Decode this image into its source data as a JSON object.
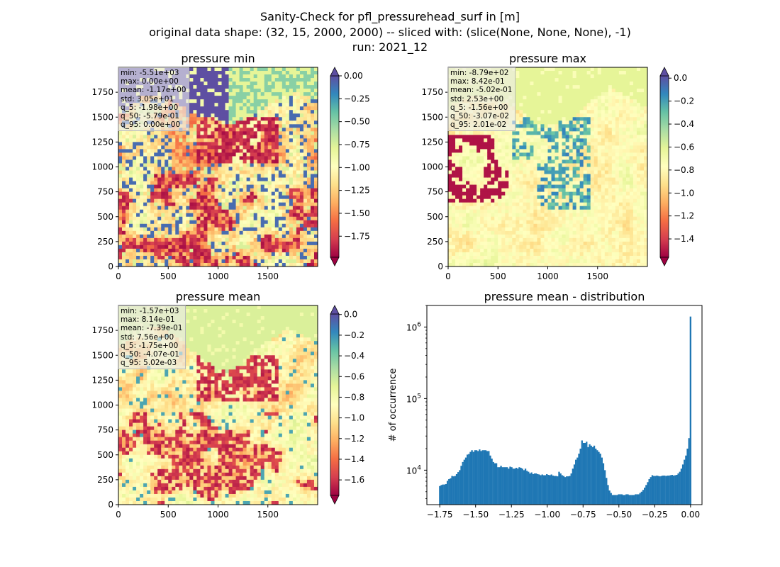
{
  "figure": {
    "title_lines": [
      "Sanity-Check for pfl_pressurehead_surf in [m]",
      "original data shape: (32, 15, 2000, 2000) -- sliced with: (slice(None, None, None), -1)",
      "run: 2021_12"
    ]
  },
  "colors": {
    "spectral_stops": [
      "#9e0142",
      "#d53e4f",
      "#f46d43",
      "#fdae61",
      "#fee08b",
      "#ffffbf",
      "#e6f598",
      "#abdda4",
      "#66c2a5",
      "#3288bd",
      "#5e4fa2"
    ],
    "bar_color": "#1f77b4"
  },
  "chart_data": [
    {
      "type": "heatmap",
      "title": "pressure min",
      "colormap": "Spectral",
      "x_range": [
        0,
        2000
      ],
      "y_range": [
        0,
        2000
      ],
      "xticks": [
        0,
        500,
        1000,
        1500
      ],
      "yticks": [
        0,
        250,
        500,
        750,
        1000,
        1250,
        1500,
        1750
      ],
      "colorbar": {
        "range": [
          -1.98,
          0.0
        ],
        "extend": "both",
        "ticks": [
          0.0,
          -0.25,
          -0.5,
          -0.75,
          -1.0,
          -1.25,
          -1.5,
          -1.75
        ],
        "tick_labels": [
          "0.00",
          "−0.25",
          "−0.50",
          "−0.75",
          "−1.00",
          "−1.25",
          "−1.50",
          "−1.75"
        ]
      },
      "stats": [
        "min: -5.51e+03",
        "max: 0.00e+00",
        "mean: -1.17e+00",
        "std: 3.05e+01",
        "q_5: -1.98e+00",
        "q_50: -5.79e-01",
        "q_95: 0.00e+00"
      ]
    },
    {
      "type": "heatmap",
      "title": "pressure max",
      "colormap": "Spectral",
      "x_range": [
        0,
        2000
      ],
      "y_range": [
        0,
        2000
      ],
      "xticks": [
        0,
        500,
        1000,
        1500
      ],
      "yticks": [
        0,
        250,
        500,
        750,
        1000,
        1250,
        1500,
        1750
      ],
      "colorbar": {
        "range": [
          -1.56,
          0.02
        ],
        "extend": "both",
        "ticks": [
          0.0,
          -0.2,
          -0.4,
          -0.6,
          -0.8,
          -1.0,
          -1.2,
          -1.4
        ],
        "tick_labels": [
          "0.0",
          "−0.2",
          "−0.4",
          "−0.6",
          "−0.8",
          "−1.0",
          "−1.2",
          "−1.4"
        ]
      },
      "stats": [
        "min: -8.79e+02",
        "max: 8.42e-01",
        "mean: -5.02e-01",
        "std: 2.53e+00",
        "q_5: -1.56e+00",
        "q_50: -3.07e-02",
        "q_95: 2.01e-02"
      ]
    },
    {
      "type": "heatmap",
      "title": "pressure mean",
      "colormap": "Spectral",
      "x_range": [
        0,
        2000
      ],
      "y_range": [
        0,
        2000
      ],
      "xticks": [
        0,
        500,
        1000,
        1500
      ],
      "yticks": [
        0,
        250,
        500,
        750,
        1000,
        1250,
        1500,
        1750
      ],
      "colorbar": {
        "range": [
          -1.75,
          0.005
        ],
        "extend": "both",
        "ticks": [
          0.0,
          -0.2,
          -0.4,
          -0.6,
          -0.8,
          -1.0,
          -1.2,
          -1.4,
          -1.6
        ],
        "tick_labels": [
          "0.0",
          "−0.2",
          "−0.4",
          "−0.6",
          "−0.8",
          "−1.0",
          "−1.2",
          "−1.4",
          "−1.6"
        ]
      },
      "stats": [
        "min: -1.57e+03",
        "max: 8.14e-01",
        "mean: -7.39e-01",
        "std: 7.56e+00",
        "q_5: -1.75e+00",
        "q_50: -4.07e-01",
        "q_95: 5.02e-03"
      ]
    },
    {
      "type": "bar",
      "title": "pressure mean - distribution",
      "xlabel": "",
      "ylabel": "# of occurrence",
      "yscale": "log",
      "xlim": [
        -1.84,
        0.08
      ],
      "ylim": [
        3300,
        2000000
      ],
      "xticks": [
        -1.75,
        -1.5,
        -1.25,
        -1.0,
        -0.75,
        -0.5,
        -0.25,
        0.0
      ],
      "xtick_labels": [
        "−1.75",
        "−1.50",
        "−1.25",
        "−1.00",
        "−0.75",
        "−0.50",
        "−0.25",
        "0.00"
      ],
      "yticks": [
        10000,
        100000,
        1000000
      ],
      "bin_range": [
        -1.755,
        0.005
      ],
      "bin_width": 0.01,
      "values": [
        6000,
        6200,
        6300,
        6300,
        6400,
        7100,
        7500,
        7700,
        8300,
        8200,
        8300,
        8800,
        9400,
        10000,
        11500,
        13000,
        14000,
        15000,
        16500,
        16800,
        18000,
        19000,
        18000,
        19000,
        19000,
        18500,
        19500,
        18500,
        19000,
        19000,
        19000,
        18500,
        18500,
        16000,
        14500,
        13000,
        12500,
        12500,
        11000,
        11000,
        11500,
        11000,
        11000,
        11000,
        11000,
        10500,
        11200,
        11000,
        10500,
        10500,
        10800,
        10500,
        11000,
        10800,
        10500,
        10000,
        10500,
        9800,
        9500,
        9000,
        9300,
        8800,
        9000,
        9000,
        8800,
        8700,
        8500,
        8700,
        8500,
        8500,
        8800,
        8600,
        8500,
        8700,
        8400,
        8300,
        8300,
        8200,
        9500,
        9000,
        8500,
        8300,
        8000,
        8200,
        8200,
        8300,
        9000,
        10500,
        12000,
        14000,
        15000,
        17000,
        20000,
        26000,
        24000,
        24000,
        25000,
        21000,
        23000,
        22000,
        21000,
        22000,
        20000,
        19000,
        18000,
        17000,
        15000,
        12500,
        10000,
        7800,
        6200,
        5200,
        4800,
        4500,
        4500,
        4500,
        4500,
        4600,
        4600,
        4600,
        4500,
        4500,
        4600,
        4600,
        4500,
        4500,
        4500,
        4500,
        4600,
        4600,
        4600,
        4800,
        5000,
        5300,
        5700,
        6200,
        6800,
        7500,
        8000,
        8500,
        8300,
        8300,
        8400,
        8300,
        8200,
        8300,
        8400,
        8400,
        8300,
        8400,
        8400,
        8500,
        8600,
        8400,
        8500,
        8600,
        9000,
        9500,
        10500,
        12000,
        14000,
        16000,
        20000,
        28000,
        1400000
      ]
    }
  ]
}
